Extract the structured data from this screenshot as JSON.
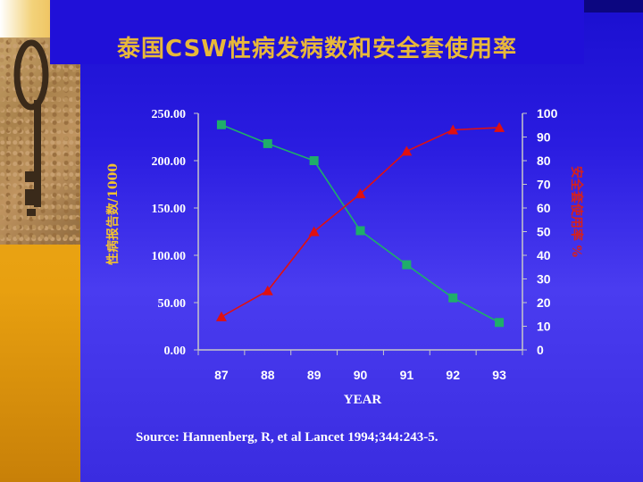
{
  "title": "泰国CSW性病发病数和安全套使用率",
  "source": "Source: Hannenberg, R, et al Lancet 1994;344:243-5.",
  "colors": {
    "left_axis_label": "#f2c230",
    "right_axis_label": "#d8201a",
    "std_series": "#1fae6a",
    "condom_series": "#e01010",
    "title": "#e8b83a"
  },
  "chart_data": {
    "type": "line",
    "x": [
      "87",
      "88",
      "89",
      "90",
      "91",
      "92",
      "93"
    ],
    "xlabel": "YEAR",
    "ylabel_left": "性病报告数/1000",
    "ylabel_right": "安全套使用率 %",
    "ylim_left": [
      0,
      250
    ],
    "ylim_right": [
      0,
      100
    ],
    "yticks_left": [
      "250.00",
      "200.00",
      "150.00",
      "100.00",
      "50.00",
      "0.00"
    ],
    "yticks_right": [
      "100",
      "90",
      "80",
      "70",
      "60",
      "50",
      "40",
      "30",
      "20",
      "10",
      "0"
    ],
    "series": [
      {
        "axis": "left",
        "marker": "square",
        "values": [
          238,
          218,
          200,
          126,
          90,
          55,
          29
        ]
      },
      {
        "axis": "right",
        "marker": "triangle",
        "values": [
          14,
          25,
          50,
          66,
          84,
          93,
          94
        ]
      }
    ],
    "grid": false
  }
}
